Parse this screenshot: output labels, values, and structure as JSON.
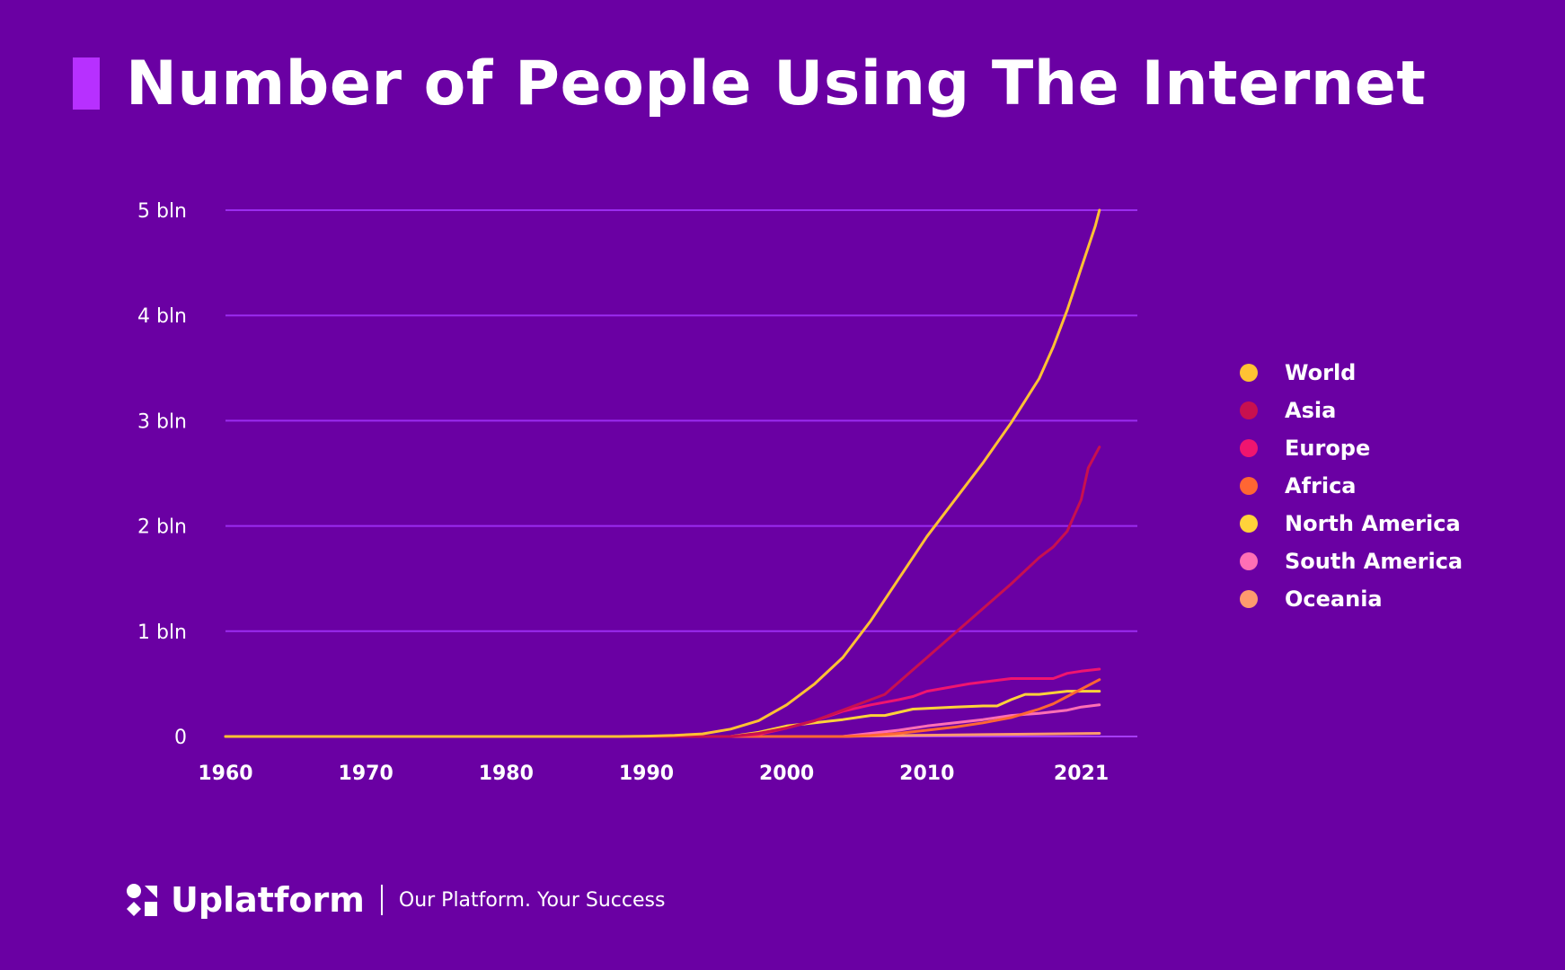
{
  "header": {
    "title": "Number of People Using The Internet"
  },
  "colors": {
    "background": "#6a00a3",
    "grid": "#9b2cf0",
    "axis": "#a63cf5",
    "accent": "#b730ff",
    "text": "#ffffff"
  },
  "chart_data": {
    "type": "line",
    "title": "Number of People Using The Internet",
    "xlabel": "",
    "ylabel": "",
    "xlim": [
      1960,
      2025
    ],
    "ylim": [
      0,
      5
    ],
    "x_ticks": [
      1960,
      1970,
      1980,
      1990,
      2000,
      2010,
      2021
    ],
    "y_ticks": [
      {
        "value": 0,
        "label": "0"
      },
      {
        "value": 1,
        "label": "1 bln"
      },
      {
        "value": 2,
        "label": "2 bln"
      },
      {
        "value": 3,
        "label": "3 bln"
      },
      {
        "value": 4,
        "label": "4 bln"
      },
      {
        "value": 5,
        "label": "5 bln"
      }
    ],
    "grid": true,
    "legend_position": "right",
    "series": [
      {
        "name": "World",
        "color": "#ffc233",
        "points": [
          [
            1960,
            0
          ],
          [
            1988,
            0
          ],
          [
            1990,
            0.003
          ],
          [
            1992,
            0.01
          ],
          [
            1994,
            0.025
          ],
          [
            1996,
            0.07
          ],
          [
            1998,
            0.15
          ],
          [
            2000,
            0.3
          ],
          [
            2002,
            0.5
          ],
          [
            2004,
            0.75
          ],
          [
            2006,
            1.1
          ],
          [
            2008,
            1.5
          ],
          [
            2010,
            1.9
          ],
          [
            2012,
            2.25
          ],
          [
            2014,
            2.6
          ],
          [
            2016,
            2.98
          ],
          [
            2018,
            3.4
          ],
          [
            2019,
            3.7
          ],
          [
            2020,
            4.05
          ],
          [
            2021,
            4.45
          ],
          [
            2022,
            4.85
          ],
          [
            2022.3,
            5.0
          ]
        ]
      },
      {
        "name": "Asia",
        "color": "#c8104f",
        "points": [
          [
            1960,
            0
          ],
          [
            1996,
            0
          ],
          [
            1998,
            0.03
          ],
          [
            2000,
            0.08
          ],
          [
            2002,
            0.15
          ],
          [
            2004,
            0.25
          ],
          [
            2006,
            0.35
          ],
          [
            2007,
            0.4
          ],
          [
            2010,
            0.75
          ],
          [
            2013,
            1.1
          ],
          [
            2016,
            1.45
          ],
          [
            2018,
            1.7
          ],
          [
            2019,
            1.8
          ],
          [
            2020,
            1.95
          ],
          [
            2021,
            2.25
          ],
          [
            2021.5,
            2.55
          ],
          [
            2022.3,
            2.75
          ]
        ]
      },
      {
        "name": "Europe",
        "color": "#f0156f",
        "points": [
          [
            1960,
            0
          ],
          [
            1996,
            0
          ],
          [
            1998,
            0.02
          ],
          [
            2000,
            0.08
          ],
          [
            2002,
            0.15
          ],
          [
            2004,
            0.24
          ],
          [
            2006,
            0.3
          ],
          [
            2008,
            0.35
          ],
          [
            2009,
            0.38
          ],
          [
            2010,
            0.43
          ],
          [
            2013,
            0.5
          ],
          [
            2016,
            0.55
          ],
          [
            2019,
            0.55
          ],
          [
            2020,
            0.6
          ],
          [
            2021,
            0.62
          ],
          [
            2022.3,
            0.64
          ]
        ]
      },
      {
        "name": "Africa",
        "color": "#ff6633",
        "points": [
          [
            1960,
            0
          ],
          [
            2004,
            0
          ],
          [
            2006,
            0.01
          ],
          [
            2008,
            0.03
          ],
          [
            2010,
            0.06
          ],
          [
            2012,
            0.09
          ],
          [
            2014,
            0.13
          ],
          [
            2016,
            0.18
          ],
          [
            2018,
            0.26
          ],
          [
            2019,
            0.31
          ],
          [
            2020,
            0.38
          ],
          [
            2021,
            0.45
          ],
          [
            2022.3,
            0.54
          ]
        ]
      },
      {
        "name": "North America",
        "color": "#ffd23a",
        "points": [
          [
            1960,
            0
          ],
          [
            1996,
            0
          ],
          [
            1998,
            0.04
          ],
          [
            2000,
            0.1
          ],
          [
            2002,
            0.13
          ],
          [
            2004,
            0.16
          ],
          [
            2006,
            0.2
          ],
          [
            2007,
            0.2
          ],
          [
            2009,
            0.26
          ],
          [
            2012,
            0.28
          ],
          [
            2014,
            0.29
          ],
          [
            2015,
            0.29
          ],
          [
            2016,
            0.35
          ],
          [
            2017,
            0.4
          ],
          [
            2018,
            0.4
          ],
          [
            2020,
            0.43
          ],
          [
            2022.3,
            0.43
          ]
        ]
      },
      {
        "name": "South America",
        "color": "#ff6fb5",
        "points": [
          [
            1960,
            0
          ],
          [
            2004,
            0
          ],
          [
            2006,
            0.03
          ],
          [
            2008,
            0.06
          ],
          [
            2010,
            0.1
          ],
          [
            2012,
            0.13
          ],
          [
            2014,
            0.16
          ],
          [
            2016,
            0.2
          ],
          [
            2018,
            0.22
          ],
          [
            2020,
            0.25
          ],
          [
            2021,
            0.28
          ],
          [
            2022.3,
            0.3
          ]
        ]
      },
      {
        "name": "Oceania",
        "color": "#ff9a6e",
        "points": [
          [
            1960,
            0
          ],
          [
            2004,
            0
          ],
          [
            2006,
            0.005
          ],
          [
            2010,
            0.012
          ],
          [
            2014,
            0.018
          ],
          [
            2018,
            0.024
          ],
          [
            2022.3,
            0.03
          ]
        ]
      }
    ]
  },
  "footer": {
    "brand": "Uplatform",
    "tagline": "Our Platform. Your Success",
    "logo_icon": "uplatform-logo-icon"
  }
}
